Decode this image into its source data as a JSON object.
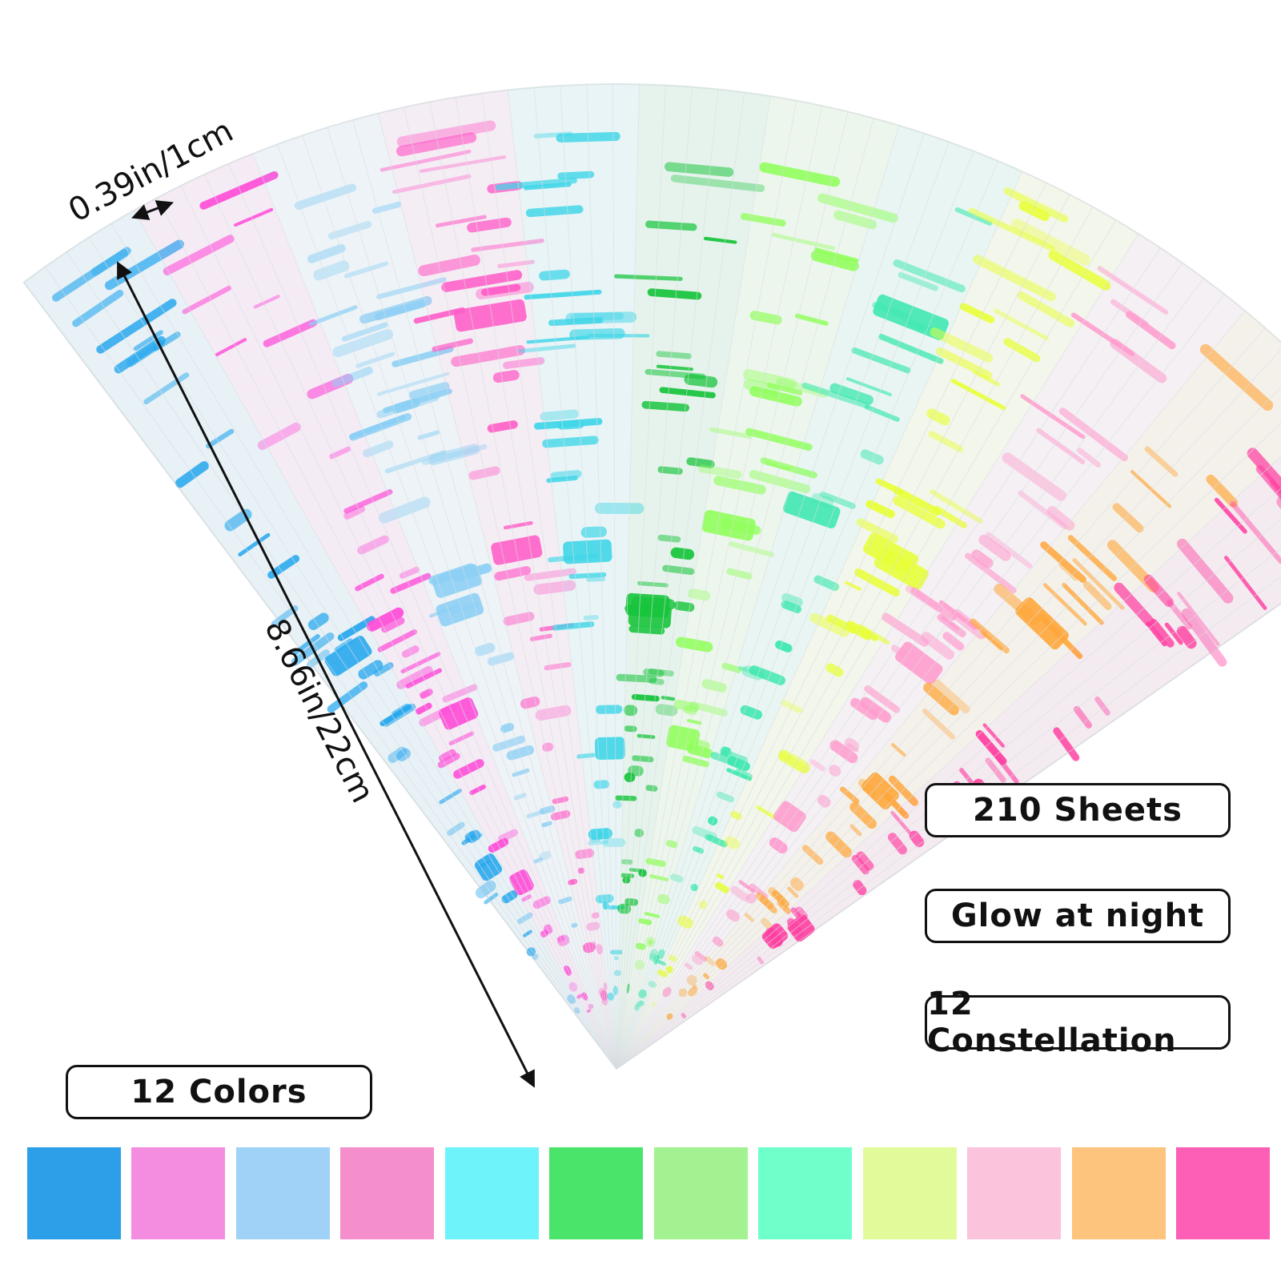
{
  "dimensions": {
    "width_label": "0.39in/1cm",
    "length_label": "8.66in/22cm"
  },
  "features": {
    "sheets": "210 Sheets",
    "glow": "Glow at night",
    "constellation": "12 Constellation",
    "colors": "12 Colors"
  },
  "swatches": [
    "#2c9fe8",
    "#f48de0",
    "#9fd2f6",
    "#f58fcc",
    "#6ef3fb",
    "#4be46a",
    "#a3f291",
    "#6effcb",
    "#e1fb9b",
    "#fcc3dc",
    "#fdc47e",
    "#fd5fb7"
  ],
  "strip_colors": [
    "#29a8ee",
    "#ff4bd8",
    "#8ccff5",
    "#ff5fc8",
    "#3fd6e8",
    "#17c43c",
    "#8fff5a",
    "#3fe8b0",
    "#e8ff3a",
    "#ff9ccd",
    "#ffa63a",
    "#ff3fa0"
  ]
}
